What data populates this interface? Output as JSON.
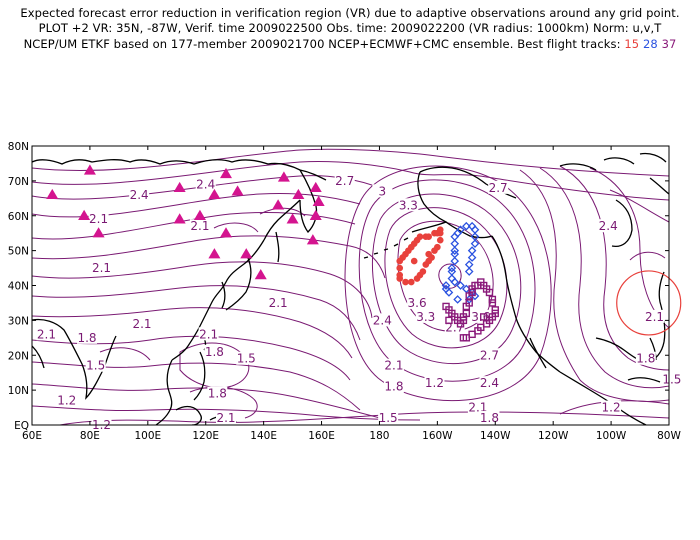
{
  "header": {
    "line1": "Expected forecast error reduction in verification region (VR) due to adaptive observations around any grid point.",
    "line2": "PLOT +2 VR: 35N, -87W, Verif. time 2009022500 Obs. time: 2009022200 (VR radius: 1000km) Norm: u,v,T",
    "line3_prefix": "NCEP/UM ETKF based on 177-member 2009021700 NCEP+ECMWF+CMC ensemble. Best flight tracks:",
    "tracks": [
      {
        "label": "15",
        "color": "#e8413c"
      },
      {
        "label": "28",
        "color": "#2a52e0"
      },
      {
        "label": "37",
        "color": "#8a1a7a"
      }
    ]
  },
  "map": {
    "lon_labels": [
      "60E",
      "80E",
      "100E",
      "120E",
      "140E",
      "160E",
      "180",
      "160W",
      "140W",
      "120W",
      "100W",
      "80W"
    ],
    "lat_labels": [
      "EQ",
      "10N",
      "20N",
      "30N",
      "40N",
      "50N",
      "60N",
      "70N",
      "80N"
    ],
    "contour_color": "#7a1a73",
    "contour_labels": [
      {
        "text": "2.7",
        "lon": 168,
        "lat": 70
      },
      {
        "text": "3",
        "lon": 181,
        "lat": 67
      },
      {
        "text": "3.3",
        "lon": 190,
        "lat": 63
      },
      {
        "text": "2.7",
        "lon": 221,
        "lat": 68
      },
      {
        "text": "2.4",
        "lon": 97,
        "lat": 66
      },
      {
        "text": "2.4",
        "lon": 120,
        "lat": 69
      },
      {
        "text": "2.1",
        "lon": 83,
        "lat": 59
      },
      {
        "text": "2.1",
        "lon": 118,
        "lat": 57
      },
      {
        "text": "2.4",
        "lon": 259,
        "lat": 57
      },
      {
        "text": "2.1",
        "lon": 84,
        "lat": 45
      },
      {
        "text": "2.1",
        "lon": 145,
        "lat": 35
      },
      {
        "text": "2.1",
        "lon": 65,
        "lat": 26
      },
      {
        "text": "1.8",
        "lon": 79,
        "lat": 25
      },
      {
        "text": "2.1",
        "lon": 98,
        "lat": 29
      },
      {
        "text": "2.1",
        "lon": 121,
        "lat": 26
      },
      {
        "text": "1.8",
        "lon": 123,
        "lat": 21
      },
      {
        "text": "1.5",
        "lon": 134,
        "lat": 19
      },
      {
        "text": "2.4",
        "lon": 181,
        "lat": 30
      },
      {
        "text": "3.6",
        "lon": 193,
        "lat": 35
      },
      {
        "text": "3.3",
        "lon": 196,
        "lat": 31
      },
      {
        "text": "2.7",
        "lon": 206,
        "lat": 28
      },
      {
        "text": "3.6",
        "lon": 215,
        "lat": 31
      },
      {
        "text": "2.7",
        "lon": 218,
        "lat": 20
      },
      {
        "text": "2.1",
        "lon": 185,
        "lat": 17
      },
      {
        "text": "1.8",
        "lon": 185,
        "lat": 11
      },
      {
        "text": "1.2",
        "lon": 199,
        "lat": 12
      },
      {
        "text": "2.4",
        "lon": 218,
        "lat": 12
      },
      {
        "text": "2.1",
        "lon": 214,
        "lat": 5
      },
      {
        "text": "1.8",
        "lon": 218,
        "lat": 2
      },
      {
        "text": "2.1",
        "lon": 275,
        "lat": 31
      },
      {
        "text": "1.8",
        "lon": 272,
        "lat": 19
      },
      {
        "text": "1.5",
        "lon": 281,
        "lat": 13
      },
      {
        "text": "1.2",
        "lon": 260,
        "lat": 5
      },
      {
        "text": "1.5",
        "lon": 82,
        "lat": 17
      },
      {
        "text": "1.2",
        "lon": 72,
        "lat": 7
      },
      {
        "text": "1.8",
        "lon": 124,
        "lat": 9
      },
      {
        "text": "2.1",
        "lon": 127,
        "lat": 2
      },
      {
        "text": "1.5",
        "lon": 183,
        "lat": 2
      },
      {
        "text": "1.2",
        "lon": 84,
        "lat": 0
      }
    ],
    "triangles": [
      {
        "lon": 67,
        "lat": 66
      },
      {
        "lon": 80,
        "lat": 73
      },
      {
        "lon": 78,
        "lat": 60
      },
      {
        "lon": 83,
        "lat": 55
      },
      {
        "lon": 111,
        "lat": 68
      },
      {
        "lon": 111,
        "lat": 59
      },
      {
        "lon": 118,
        "lat": 60
      },
      {
        "lon": 123,
        "lat": 66
      },
      {
        "lon": 127,
        "lat": 72
      },
      {
        "lon": 131,
        "lat": 67
      },
      {
        "lon": 127,
        "lat": 55
      },
      {
        "lon": 145,
        "lat": 63
      },
      {
        "lon": 147,
        "lat": 71
      },
      {
        "lon": 152,
        "lat": 66
      },
      {
        "lon": 150,
        "lat": 59
      },
      {
        "lon": 158,
        "lat": 68
      },
      {
        "lon": 159,
        "lat": 64
      },
      {
        "lon": 158,
        "lat": 60
      },
      {
        "lon": 157,
        "lat": 53
      },
      {
        "lon": 123,
        "lat": 49
      },
      {
        "lon": 134,
        "lat": 49
      },
      {
        "lon": 139,
        "lat": 43
      }
    ],
    "track_red": [
      [
        201,
        56
      ],
      [
        200,
        55
      ],
      [
        199,
        55
      ],
      [
        197,
        54
      ],
      [
        196,
        54
      ],
      [
        194,
        54
      ],
      [
        193,
        53
      ],
      [
        192,
        52
      ],
      [
        191,
        51
      ],
      [
        190,
        50
      ],
      [
        189,
        49
      ],
      [
        188,
        48
      ],
      [
        187,
        47
      ],
      [
        187,
        45
      ],
      [
        187,
        43
      ],
      [
        187,
        42
      ],
      [
        189,
        41
      ],
      [
        191,
        41
      ],
      [
        193,
        42
      ],
      [
        194,
        43
      ],
      [
        195,
        44
      ],
      [
        196,
        46
      ],
      [
        197,
        47
      ],
      [
        198,
        48
      ],
      [
        199,
        50
      ],
      [
        200,
        51
      ],
      [
        201,
        53
      ],
      [
        201,
        55
      ],
      [
        197,
        49
      ],
      [
        192,
        47
      ]
    ],
    "track_blue": [
      [
        208,
        56
      ],
      [
        207,
        55
      ],
      [
        206,
        54
      ],
      [
        206,
        52
      ],
      [
        206,
        50
      ],
      [
        206,
        49
      ],
      [
        206,
        47
      ],
      [
        205,
        45
      ],
      [
        205,
        44
      ],
      [
        205,
        42
      ],
      [
        206,
        41
      ],
      [
        208,
        40
      ],
      [
        210,
        39
      ],
      [
        212,
        38
      ],
      [
        213,
        37
      ],
      [
        211,
        36
      ],
      [
        207,
        36
      ],
      [
        204,
        38
      ],
      [
        203,
        39
      ],
      [
        203,
        40
      ],
      [
        210,
        57
      ],
      [
        212,
        57
      ],
      [
        213,
        56
      ],
      [
        213,
        54
      ],
      [
        213,
        52
      ],
      [
        212,
        50
      ],
      [
        212,
        48
      ],
      [
        211,
        46
      ],
      [
        211,
        44
      ]
    ],
    "track_purple": [
      [
        203,
        34
      ],
      [
        204,
        33
      ],
      [
        205,
        32
      ],
      [
        206,
        31
      ],
      [
        207,
        30
      ],
      [
        208,
        29
      ],
      [
        209,
        30
      ],
      [
        209,
        31
      ],
      [
        210,
        32
      ],
      [
        210,
        34
      ],
      [
        211,
        35
      ],
      [
        211,
        37
      ],
      [
        212,
        38
      ],
      [
        212,
        39
      ],
      [
        213,
        40
      ],
      [
        214,
        40
      ],
      [
        215,
        41
      ],
      [
        216,
        40
      ],
      [
        217,
        39
      ],
      [
        218,
        38
      ],
      [
        219,
        36
      ],
      [
        219,
        35
      ],
      [
        220,
        33
      ],
      [
        220,
        32
      ],
      [
        219,
        31
      ],
      [
        218,
        30
      ],
      [
        217,
        29
      ],
      [
        215,
        28
      ],
      [
        214,
        27
      ],
      [
        212,
        26
      ],
      [
        210,
        25
      ],
      [
        209,
        25
      ],
      [
        204,
        30
      ],
      [
        216,
        31
      ]
    ],
    "vr_circle": {
      "lon": 273,
      "lat": 35,
      "color": "#e8413c"
    }
  }
}
